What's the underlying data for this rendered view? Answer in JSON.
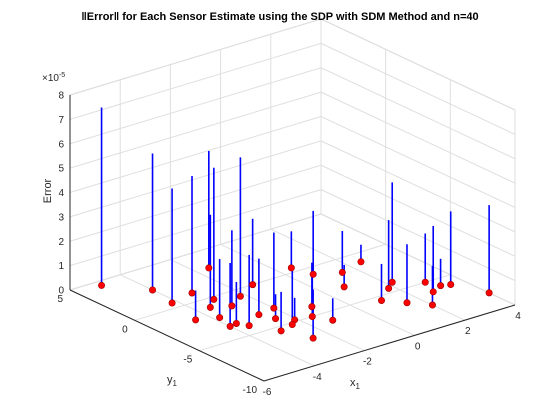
{
  "chart_data": {
    "type": "scatter",
    "subtype": "stem3",
    "title": "‖Error‖ for Each Sensor Estimate using the SDP with SDM Method and n=40",
    "xlabel": "x",
    "xlabel_sub": "1",
    "ylabel": "y",
    "ylabel_sub": "1",
    "zlabel": "Error",
    "z_exponent": "×10",
    "z_exponent_power": "-5",
    "xlim": [
      -6,
      4
    ],
    "ylim": [
      -10,
      5
    ],
    "zlim": [
      0,
      8
    ],
    "x_ticks": [
      "-6",
      "-4",
      "-2",
      "0",
      "2",
      "4"
    ],
    "y_ticks": [
      "5",
      "0",
      "-5",
      "-10"
    ],
    "z_ticks": [
      "0",
      "1",
      "2",
      "3",
      "4",
      "5",
      "6",
      "7",
      "8"
    ],
    "grid": true,
    "stem_color": "#0000ff",
    "marker_color": "#ff0000",
    "points": [
      {
        "x": -5.0,
        "y": 4.5,
        "z": 7.3
      },
      {
        "x": -4.0,
        "y": 2.5,
        "z": 5.6
      },
      {
        "x": -3.2,
        "y": 1.0,
        "z": 4.8
      },
      {
        "x": -4.2,
        "y": 0.6,
        "z": 4.7
      },
      {
        "x": -1.5,
        "y": 3.0,
        "z": 4.8
      },
      {
        "x": -3.0,
        "y": -0.3,
        "z": 5.4
      },
      {
        "x": -3.5,
        "y": -1.0,
        "z": 3.8
      },
      {
        "x": -1.3,
        "y": 0.0,
        "z": 2.7
      },
      {
        "x": -3.8,
        "y": -2.3,
        "z": 2.4
      },
      {
        "x": -4.5,
        "y": -1.8,
        "z": 1.2
      },
      {
        "x": -4.0,
        "y": -3.5,
        "z": 2.6
      },
      {
        "x": -3.5,
        "y": -4.0,
        "z": 2.9
      },
      {
        "x": -3.0,
        "y": -5.5,
        "z": 1.6
      },
      {
        "x": -2.0,
        "y": -3.0,
        "z": 3.1
      },
      {
        "x": -1.5,
        "y": -5.0,
        "z": 2.2
      },
      {
        "x": -2.2,
        "y": -0.8,
        "z": 5.7
      },
      {
        "x": -1.0,
        "y": -4.0,
        "z": 1.8
      },
      {
        "x": -2.6,
        "y": -7.2,
        "z": 2.0
      },
      {
        "x": -2.9,
        "y": -1.5,
        "z": 3.1
      },
      {
        "x": -3.7,
        "y": -3.4,
        "z": 1.7
      },
      {
        "x": -2.1,
        "y": -4.8,
        "z": 0.9
      },
      {
        "x": -2.7,
        "y": -3.2,
        "z": 2.3
      },
      {
        "x": -2.5,
        "y": -4.1,
        "z": 1.0
      },
      {
        "x": 0.5,
        "y": 0.5,
        "z": 1.5
      },
      {
        "x": -1.2,
        "y": -6.0,
        "z": 0.9
      },
      {
        "x": -2.4,
        "y": -5.2,
        "z": 2.4
      },
      {
        "x": 0.7,
        "y": -0.8,
        "z": 2.6
      },
      {
        "x": 0.8,
        "y": -3.0,
        "z": 0.9
      },
      {
        "x": 1.5,
        "y": -1.5,
        "z": 1.7
      },
      {
        "x": 1.0,
        "y": -5.5,
        "z": 1.5
      },
      {
        "x": 2.5,
        "y": -1.0,
        "z": 0.7
      },
      {
        "x": 1.8,
        "y": -4.5,
        "z": 2.8
      },
      {
        "x": 1.5,
        "y": -6.5,
        "z": 2.4
      },
      {
        "x": 2.2,
        "y": -4.0,
        "z": 4.1
      },
      {
        "x": 2.7,
        "y": -6.2,
        "z": 2.7
      },
      {
        "x": 3.0,
        "y": -5.0,
        "z": 2.0
      },
      {
        "x": 3.5,
        "y": -6.0,
        "z": 3.0
      },
      {
        "x": 3.2,
        "y": -5.8,
        "z": 1.1
      },
      {
        "x": 2.0,
        "y": -7.5,
        "z": 1.6
      },
      {
        "x": 4.0,
        "y": -8.0,
        "z": 3.6
      }
    ]
  }
}
